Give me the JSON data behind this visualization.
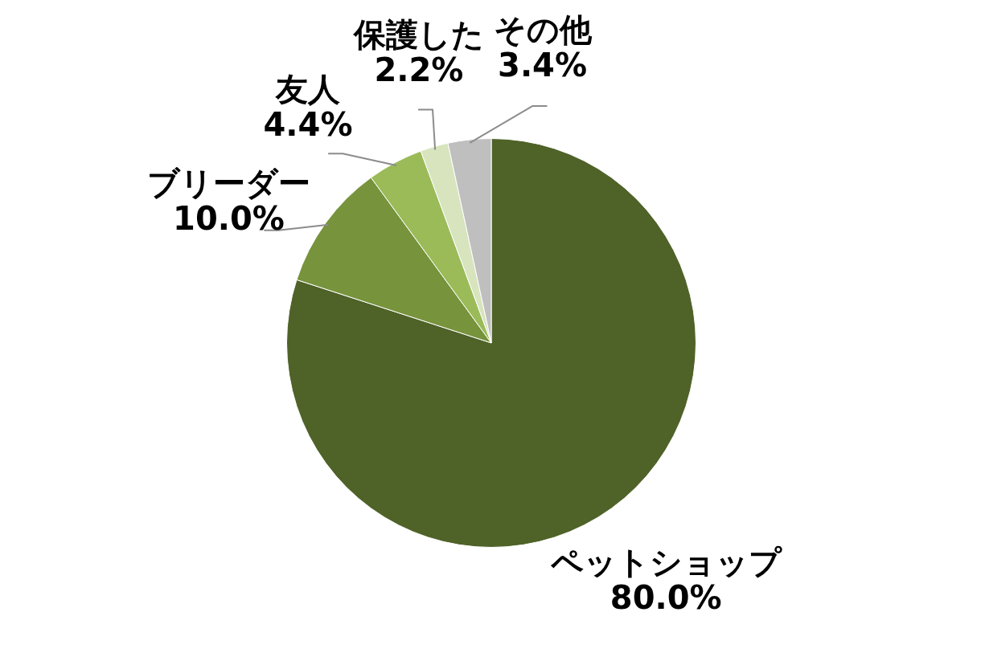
{
  "chart_data": {
    "type": "pie",
    "categories": [
      "ペットショップ",
      "ブリーダー",
      "友人",
      "保護した",
      "その他"
    ],
    "values": [
      80.0,
      10.0,
      4.4,
      2.2,
      3.4
    ],
    "value_labels": [
      "80.0%",
      "10.0%",
      "4.4%",
      "2.2%",
      "3.4%"
    ],
    "colors": [
      "#4f6228",
      "#77933c",
      "#9bbb59",
      "#d7e4bd",
      "#bfbfbf"
    ],
    "legend": false
  }
}
